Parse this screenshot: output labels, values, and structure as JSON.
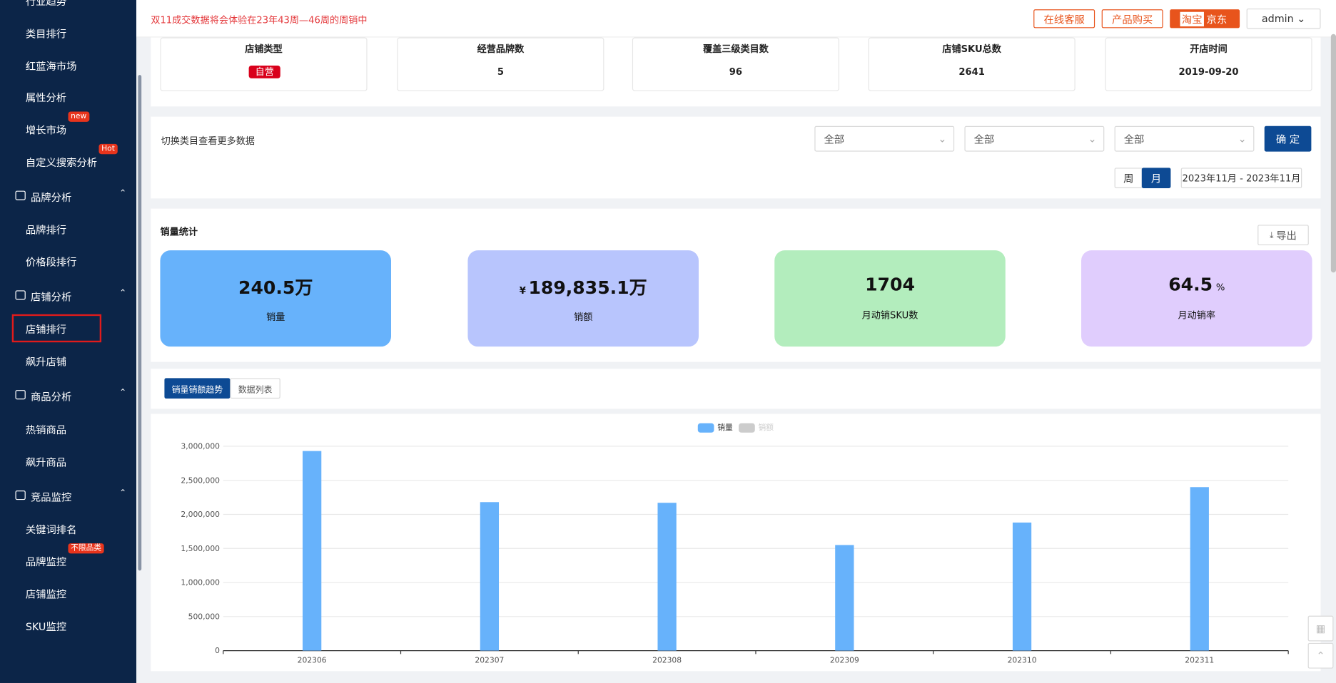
{
  "sidebar": [
    {
      "label": "行业趋势",
      "kind": "item"
    },
    {
      "label": "类目排行",
      "kind": "item"
    },
    {
      "label": "红蓝海市场",
      "kind": "item"
    },
    {
      "label": "属性分析",
      "kind": "item"
    },
    {
      "label": "增长市场",
      "kind": "item",
      "badge": "new"
    },
    {
      "label": "自定义搜索分析",
      "kind": "item",
      "badge": "Hot"
    },
    {
      "label": "品牌分析",
      "kind": "group"
    },
    {
      "label": "品牌排行",
      "kind": "item"
    },
    {
      "label": "价格段排行",
      "kind": "item"
    },
    {
      "label": "店铺分析",
      "kind": "group"
    },
    {
      "label": "店铺排行",
      "kind": "item",
      "highlight": true
    },
    {
      "label": "飙升店铺",
      "kind": "item"
    },
    {
      "label": "商品分析",
      "kind": "group"
    },
    {
      "label": "热销商品",
      "kind": "item"
    },
    {
      "label": "飙升商品",
      "kind": "item"
    },
    {
      "label": "竞品监控",
      "kind": "group"
    },
    {
      "label": "关键词排名",
      "kind": "item"
    },
    {
      "label": "品牌监控",
      "kind": "item",
      "badge": "不限品类"
    },
    {
      "label": "店铺监控",
      "kind": "item"
    },
    {
      "label": "SKU监控",
      "kind": "item"
    }
  ],
  "header": {
    "notice": "双11成交数据将会体验在23年43周—46周的周销中",
    "buttons": [
      "在线客服",
      "产品购买"
    ],
    "platforms": [
      "淘宝",
      "京东"
    ],
    "user": "admin"
  },
  "info": [
    {
      "label": "店铺类型",
      "value": "自营",
      "tag": true
    },
    {
      "label": "经营品牌数",
      "value": "5"
    },
    {
      "label": "覆盖三级类目数",
      "value": "96"
    },
    {
      "label": "店铺SKU总数",
      "value": "2641"
    },
    {
      "label": "开店时间",
      "value": "2019-09-20"
    }
  ],
  "filters": {
    "label": "切换类目查看更多数据",
    "selects": [
      "全部",
      "全部",
      "全部"
    ],
    "confirm": "确 定",
    "periods": [
      "周",
      "月"
    ],
    "date_range": "2023年11月 - 2023年11月"
  },
  "stats": {
    "title": "销量统计",
    "export": "导出",
    "cards": [
      {
        "value": "240.5万",
        "label": "销量",
        "color": "#67b2fb"
      },
      {
        "prefix": "¥",
        "value": "189,835.1万",
        "label": "销额",
        "color": "#b8c5fd"
      },
      {
        "value": "1704",
        "label": "月动销SKU数",
        "color": "#b3edbd"
      },
      {
        "value": "64.5",
        "suffix": "%",
        "label": "月动销率",
        "color": "#e0cdfd"
      }
    ]
  },
  "tabs": [
    "销量销额趋势",
    "数据列表"
  ],
  "chart_data": {
    "type": "bar",
    "categories": [
      "202306",
      "202307",
      "202308",
      "202309",
      "202310",
      "202311"
    ],
    "series": [
      {
        "name": "销量",
        "color": "#67b2fb",
        "values": [
          2930000,
          2180000,
          2170000,
          1550000,
          1880000,
          2400000
        ]
      },
      {
        "name": "销额",
        "color": "#cccccc",
        "visible": false
      }
    ],
    "ylim": [
      0,
      3000000
    ],
    "yticks": [
      0,
      {
        "value": 500000,
        "label": "500,000"
      },
      {
        "value": 1000000,
        "label": "1,000,000"
      },
      {
        "value": 1500000,
        "label": "1,500,000"
      },
      {
        "value": 2000000,
        "label": "2,000,000"
      },
      {
        "value": 2500000,
        "label": "2,500,000"
      },
      {
        "value": 3000000,
        "label": "3,000,000"
      }
    ],
    "grid": true
  }
}
